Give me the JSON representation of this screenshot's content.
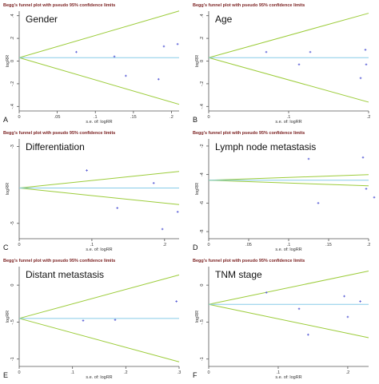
{
  "figure_title": "Begg's funnel plot with pseudo 95% confidence limits",
  "chart_data": [
    {
      "type": "scatter",
      "letter": "A",
      "name": "Gender",
      "title": "Begg's funnel plot with pseudo 95% confidence limits",
      "xlabel": "s.e. of: logRR",
      "ylabel": "logRR",
      "xlim": [
        0,
        0.21
      ],
      "ylim": [
        -0.44,
        0.44
      ],
      "xticks": [
        0,
        0.05,
        0.1,
        0.15,
        0.2
      ],
      "xtick_labels": [
        "0",
        ".05",
        ".1",
        ".15",
        ".2"
      ],
      "yticks": [
        -0.4,
        -0.2,
        0,
        0.2,
        0.4
      ],
      "ytick_labels": [
        "-.4",
        "-.2",
        "0",
        ".2",
        ".4"
      ],
      "pooled": 0.03,
      "points": [
        {
          "x": 0.075,
          "y": 0.08
        },
        {
          "x": 0.125,
          "y": 0.04
        },
        {
          "x": 0.14,
          "y": -0.13
        },
        {
          "x": 0.183,
          "y": -0.16
        },
        {
          "x": 0.19,
          "y": 0.13
        },
        {
          "x": 0.208,
          "y": 0.15
        }
      ]
    },
    {
      "type": "scatter",
      "letter": "B",
      "name": "Age",
      "title": "Begg's funnel plot with pseudo 95% confidence limits",
      "xlabel": "s.e. of: logRR",
      "ylabel": "logRR",
      "xlim": [
        0,
        0.2
      ],
      "ylim": [
        -0.44,
        0.44
      ],
      "xticks": [
        0,
        0.1,
        0.2
      ],
      "xtick_labels": [
        "0",
        ".1",
        ".2"
      ],
      "yticks": [
        -0.4,
        -0.2,
        0,
        0.2,
        0.4
      ],
      "ytick_labels": [
        "-.4",
        "-.2",
        "0",
        ".2",
        ".4"
      ],
      "pooled": 0.03,
      "points": [
        {
          "x": 0.072,
          "y": 0.08
        },
        {
          "x": 0.113,
          "y": -0.03
        },
        {
          "x": 0.127,
          "y": 0.08
        },
        {
          "x": 0.19,
          "y": -0.15
        },
        {
          "x": 0.196,
          "y": 0.1
        },
        {
          "x": 0.197,
          "y": -0.03
        }
      ]
    },
    {
      "type": "scatter",
      "letter": "C",
      "name": "Differentiation",
      "title": "Begg's funnel plot with pseudo 95% confidence limits",
      "xlabel": "s.e. of: logRR",
      "ylabel": "logRR",
      "xlim": [
        0,
        0.22
      ],
      "ylim": [
        -5.4,
        -2.8
      ],
      "xticks": [
        0,
        0.1,
        0.2
      ],
      "xtick_labels": [
        "0",
        ".1",
        ".2"
      ],
      "yticks": [
        -5,
        -3
      ],
      "ytick_labels": [
        "-5",
        "-3"
      ],
      "pooled": -4.08,
      "points": [
        {
          "x": 0.093,
          "y": -3.62
        },
        {
          "x": 0.135,
          "y": -4.6
        },
        {
          "x": 0.185,
          "y": -3.95
        },
        {
          "x": 0.197,
          "y": -5.15
        },
        {
          "x": 0.218,
          "y": -4.7
        }
      ]
    },
    {
      "type": "scatter",
      "letter": "D",
      "name": "Lymph node metastasis",
      "title": "Begg's funnel plot with pseudo 95% confidence limits",
      "xlabel": "s.e. of: logRR",
      "ylabel": "logRR",
      "xlim": [
        0,
        0.2
      ],
      "ylim": [
        -8.5,
        -1.5
      ],
      "xticks": [
        0,
        0.05,
        0.1,
        0.15,
        0.2
      ],
      "xtick_labels": [
        "0",
        ".05",
        ".1",
        ".15",
        ".2"
      ],
      "yticks": [
        -8,
        -6,
        -4,
        -2
      ],
      "ytick_labels": [
        "-8",
        "-6",
        "-4",
        "-2"
      ],
      "pooled": -4.4,
      "points": [
        {
          "x": 0.125,
          "y": -2.9
        },
        {
          "x": 0.137,
          "y": -6.0
        },
        {
          "x": 0.193,
          "y": -2.8
        },
        {
          "x": 0.197,
          "y": -5.0
        },
        {
          "x": 0.207,
          "y": -5.6
        }
      ]
    },
    {
      "type": "scatter",
      "letter": "E",
      "name": "Distant metastasis",
      "title": "Begg's funnel plot with pseudo 95% confidence limits",
      "xlabel": "s.e. of: logRR",
      "ylabel": "logRR",
      "xlim": [
        0,
        0.3
      ],
      "ylim": [
        -1.1,
        0.25
      ],
      "xticks": [
        0,
        0.1,
        0.2,
        0.3
      ],
      "xtick_labels": [
        "0",
        ".1",
        ".2",
        ".3"
      ],
      "yticks": [
        -1,
        -0.5,
        0
      ],
      "ytick_labels": [
        "-1",
        "-.5",
        "0"
      ],
      "pooled": -0.45,
      "points": [
        {
          "x": 0.12,
          "y": -0.48
        },
        {
          "x": 0.18,
          "y": -0.47
        },
        {
          "x": 0.295,
          "y": -0.22
        }
      ]
    },
    {
      "type": "scatter",
      "letter": "F",
      "name": "TNM stage",
      "title": "Begg's funnel plot with pseudo 95% confidence limits",
      "xlabel": "s.e. of: logRR",
      "ylabel": "logRR",
      "xlim": [
        0,
        0.23
      ],
      "ylim": [
        -1.1,
        0.25
      ],
      "xticks": [
        0,
        0.1,
        0.2
      ],
      "xtick_labels": [
        "0",
        ".1",
        ".2"
      ],
      "yticks": [
        -1,
        -0.5,
        0
      ],
      "ytick_labels": [
        "-1",
        "-.5",
        "0"
      ],
      "pooled": -0.26,
      "points": [
        {
          "x": 0.083,
          "y": -0.1
        },
        {
          "x": 0.13,
          "y": -0.32
        },
        {
          "x": 0.143,
          "y": -0.67
        },
        {
          "x": 0.195,
          "y": -0.15
        },
        {
          "x": 0.2,
          "y": -0.43
        },
        {
          "x": 0.218,
          "y": -0.22
        }
      ]
    }
  ],
  "colors": {
    "funnel": "#9ccc3a",
    "pooled": "#87cbe8",
    "points": "#5a5fd6",
    "axis": "#555555",
    "title": "#7a1f1f"
  }
}
